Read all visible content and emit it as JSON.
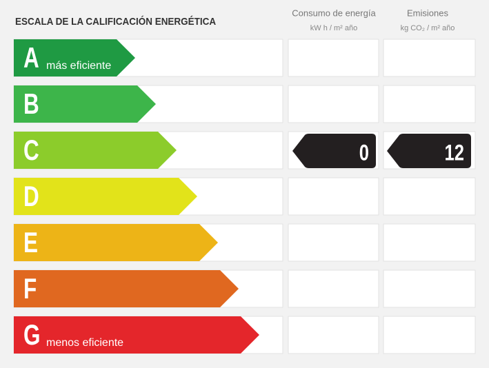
{
  "header": {
    "title": "ESCALA DE LA CALIFICACIÓN ENERGÉTICA"
  },
  "columns": [
    {
      "title": "Consumo de energía",
      "unit": "kW h / m² año"
    },
    {
      "title": "Emisiones",
      "unit": "kg CO₂ / m² año"
    }
  ],
  "rows": [
    {
      "letter": "A",
      "label": "más eficiente",
      "color": "#1f9a43"
    },
    {
      "letter": "B",
      "color": "#3db54a"
    },
    {
      "letter": "C",
      "color": "#8ccc2b",
      "consumption": 0,
      "emissions": 12
    },
    {
      "letter": "D",
      "color": "#e2e31a"
    },
    {
      "letter": "E",
      "color": "#edb417"
    },
    {
      "letter": "F",
      "color": "#e06820"
    },
    {
      "letter": "G",
      "label": "menos eficiente",
      "color": "#e4262b"
    }
  ]
}
